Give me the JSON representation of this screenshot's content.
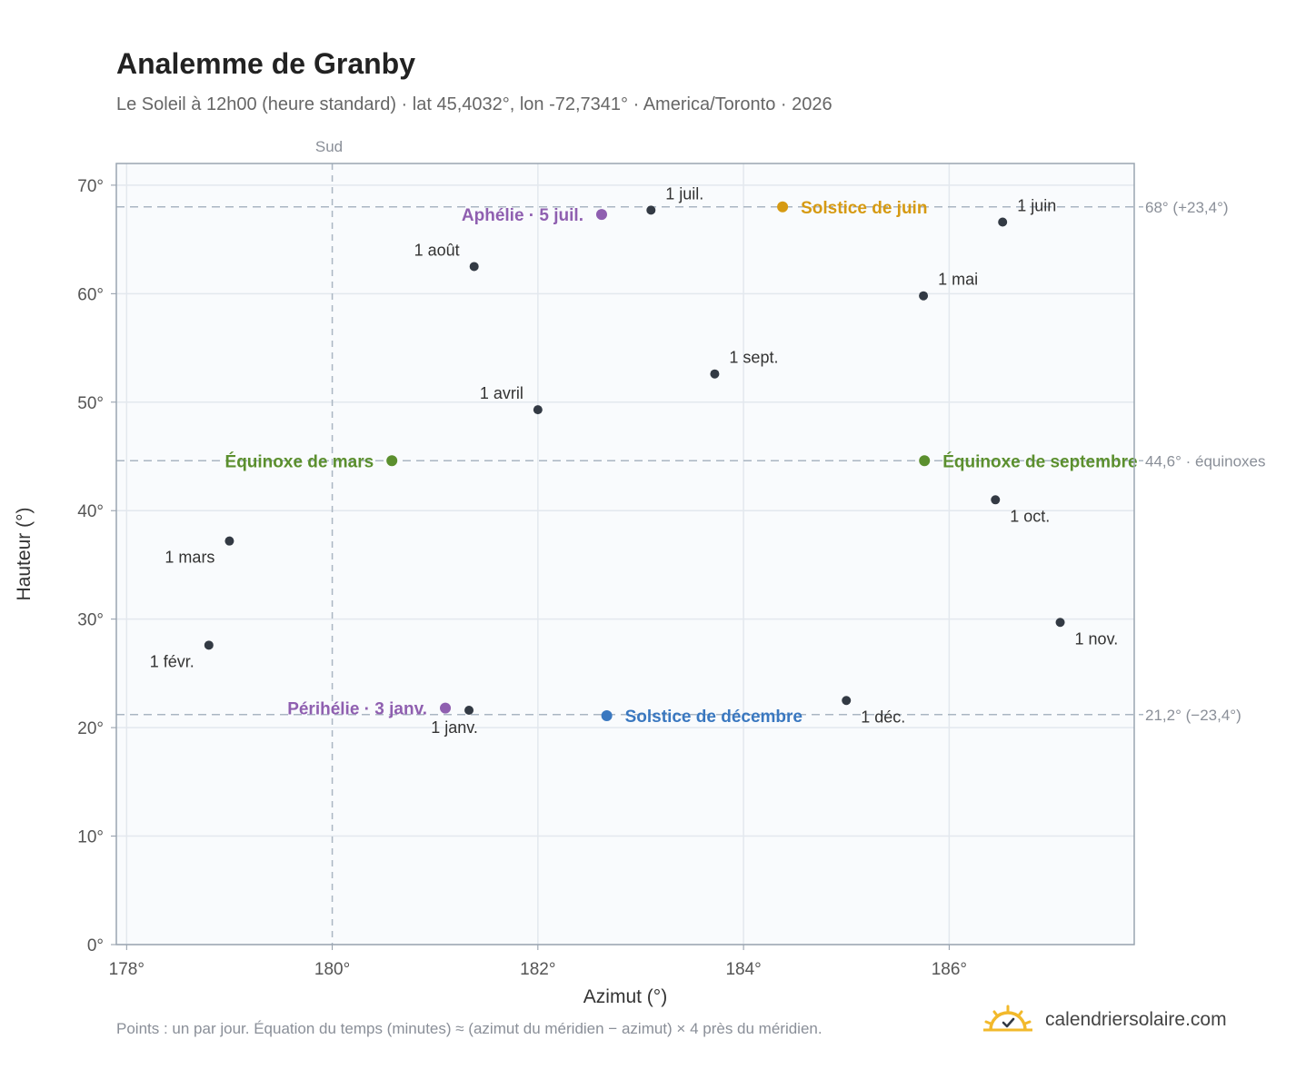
{
  "header": {
    "title": "Analemme de Granby",
    "subtitle": "Le Soleil à 12h00 (heure standard) · lat 45,4032°, lon -72,7341° · America/Toronto · 2026"
  },
  "footer": {
    "note": "Points : un par jour. Équation du temps (minutes) ≈ (azimut du méridien − azimut) × 4 près du méridien.",
    "brand": "calendriersolaire.com",
    "brand_icon": "sun-check-icon"
  },
  "colors": {
    "curve": "#f0a12b",
    "month_marker": "#333a44",
    "equinox": "#5b8f2e",
    "june_solstice": "#d69a12",
    "december_solstice": "#3a78c0",
    "apsis": "#8f5fb0"
  },
  "chart_data": {
    "type": "scatter",
    "xlabel": "Azimut (°)",
    "ylabel": "Hauteur (°)",
    "xlim": [
      177.9,
      187.8
    ],
    "ylim": [
      0,
      72
    ],
    "x_ticks": [
      178,
      180,
      182,
      184,
      186
    ],
    "x_tick_labels": [
      "178°",
      "180°",
      "182°",
      "184°",
      "186°"
    ],
    "y_ticks": [
      0,
      10,
      20,
      30,
      40,
      50,
      60,
      70
    ],
    "y_tick_labels": [
      "0°",
      "10°",
      "20°",
      "30°",
      "40°",
      "50°",
      "60°",
      "70°"
    ],
    "grid": true,
    "meridian": {
      "x": 180,
      "label": "Sud"
    },
    "reference_lines": [
      {
        "y": 68.0,
        "label": "68° (+23,4°)"
      },
      {
        "y": 44.6,
        "label": "44,6° · équinoxes"
      },
      {
        "y": 21.2,
        "label": "21,2° (−23,4°)"
      }
    ],
    "month_points": [
      {
        "label": "1 janv.",
        "x": 181.33,
        "y": 21.6,
        "label_pos": "below"
      },
      {
        "label": "1 févr.",
        "x": 178.8,
        "y": 27.6,
        "label_pos": "below-left"
      },
      {
        "label": "1 mars",
        "x": 179.0,
        "y": 37.2,
        "label_pos": "below-left"
      },
      {
        "label": "1 avril",
        "x": 182.0,
        "y": 49.3,
        "label_pos": "above-left"
      },
      {
        "label": "1 mai",
        "x": 185.75,
        "y": 59.8,
        "label_pos": "above-right"
      },
      {
        "label": "1 juin",
        "x": 186.52,
        "y": 66.6,
        "label_pos": "above-right"
      },
      {
        "label": "1 juil.",
        "x": 183.1,
        "y": 67.7,
        "label_pos": "above-right"
      },
      {
        "label": "1 août",
        "x": 181.38,
        "y": 62.5,
        "label_pos": "above-left"
      },
      {
        "label": "1 sept.",
        "x": 183.72,
        "y": 52.6,
        "label_pos": "above-right"
      },
      {
        "label": "1 oct.",
        "x": 186.45,
        "y": 41.0,
        "label_pos": "below-right"
      },
      {
        "label": "1 nov.",
        "x": 187.08,
        "y": 29.7,
        "label_pos": "below-right"
      },
      {
        "label": "1 déc.",
        "x": 185.0,
        "y": 22.5,
        "label_pos": "below-right"
      }
    ],
    "events": [
      {
        "label": "Équinoxe de mars",
        "x": 180.58,
        "y": 44.6,
        "color": "#5b8f2e",
        "label_pos": "left"
      },
      {
        "label": "Équinoxe de septembre",
        "x": 185.76,
        "y": 44.6,
        "color": "#5b8f2e",
        "label_pos": "right"
      },
      {
        "label": "Solstice de juin",
        "x": 184.38,
        "y": 68.0,
        "color": "#d69a12",
        "label_pos": "right"
      },
      {
        "label": "Solstice de décembre",
        "x": 182.67,
        "y": 21.1,
        "color": "#3a78c0",
        "label_pos": "right"
      },
      {
        "label": "Aphélie · 5 juil.",
        "x": 182.62,
        "y": 67.3,
        "color": "#8f5fb0",
        "label_pos": "left"
      },
      {
        "label": "Périhélie · 3 janv.",
        "x": 181.1,
        "y": 21.8,
        "color": "#8f5fb0",
        "label_pos": "left"
      }
    ]
  }
}
